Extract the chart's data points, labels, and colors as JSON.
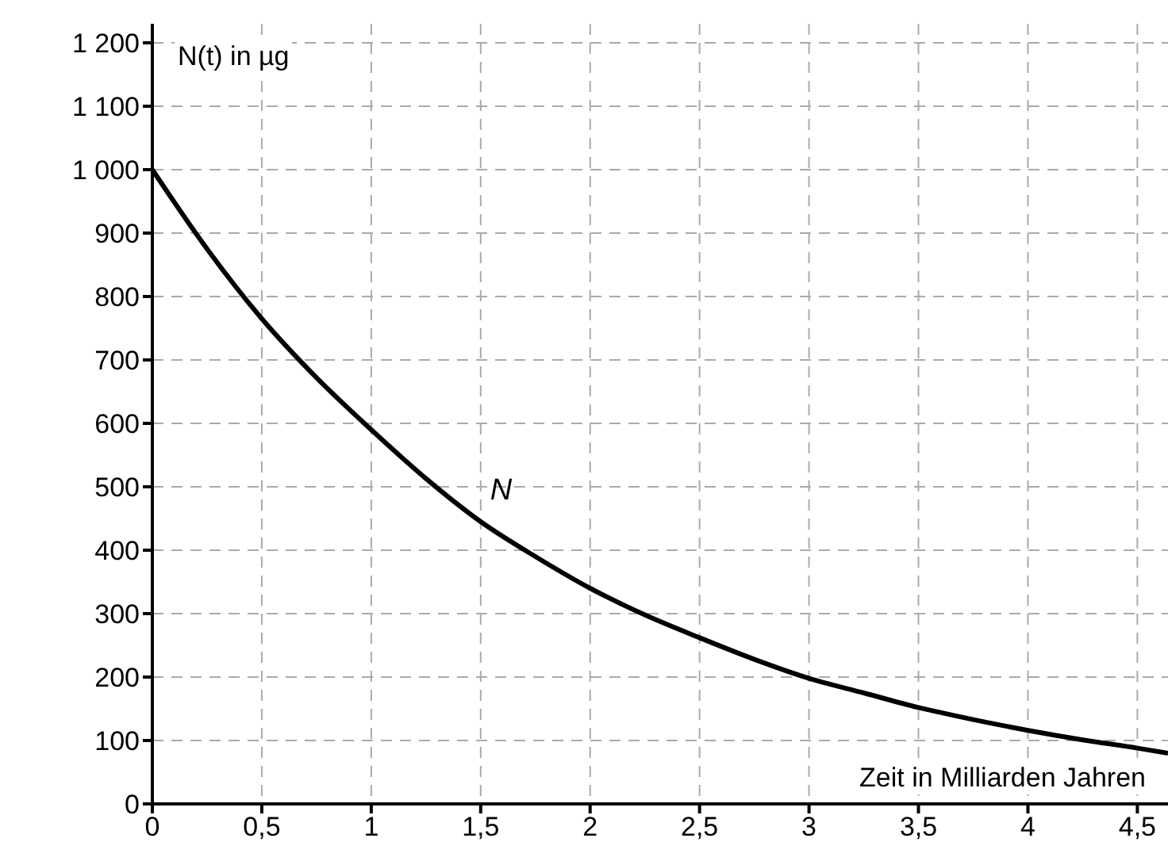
{
  "chart_data": {
    "type": "line",
    "xlabel": "Zeit in Milliarden Jahren",
    "ylabel": "N(t) in µg",
    "x": [
      0,
      0.25,
      0.5,
      0.75,
      1,
      1.25,
      1.5,
      1.75,
      2,
      2.25,
      2.5,
      2.75,
      3,
      3.25,
      3.5,
      3.75,
      4,
      4.25,
      4.5,
      4.64
    ],
    "series": [
      {
        "name": "N",
        "color": "#000000",
        "values": [
          1000,
          875,
          765,
          672,
          590,
          513,
          445,
          390,
          340,
          298,
          262,
          228,
          198,
          175,
          152,
          133,
          116,
          101,
          88,
          80
        ]
      }
    ],
    "xlim": [
      0,
      4.64
    ],
    "ylim": [
      0,
      1230
    ],
    "xticks": [
      0,
      {
        "value": 0.5,
        "label": "0,5"
      },
      1,
      {
        "value": 1.5,
        "label": "1,5"
      },
      2,
      {
        "value": 2.5,
        "label": "2,5"
      },
      3,
      {
        "value": 3.5,
        "label": "3,5"
      },
      4,
      {
        "value": 4.5,
        "label": "4,5"
      }
    ],
    "yticks": [
      0,
      100,
      200,
      300,
      400,
      500,
      600,
      700,
      800,
      900,
      {
        "value": 1000,
        "label": "1 000"
      },
      {
        "value": 1100,
        "label": "1 100"
      },
      {
        "value": 1200,
        "label": "1 200"
      }
    ],
    "grid": true,
    "line_style": "solid",
    "marker": "none"
  }
}
